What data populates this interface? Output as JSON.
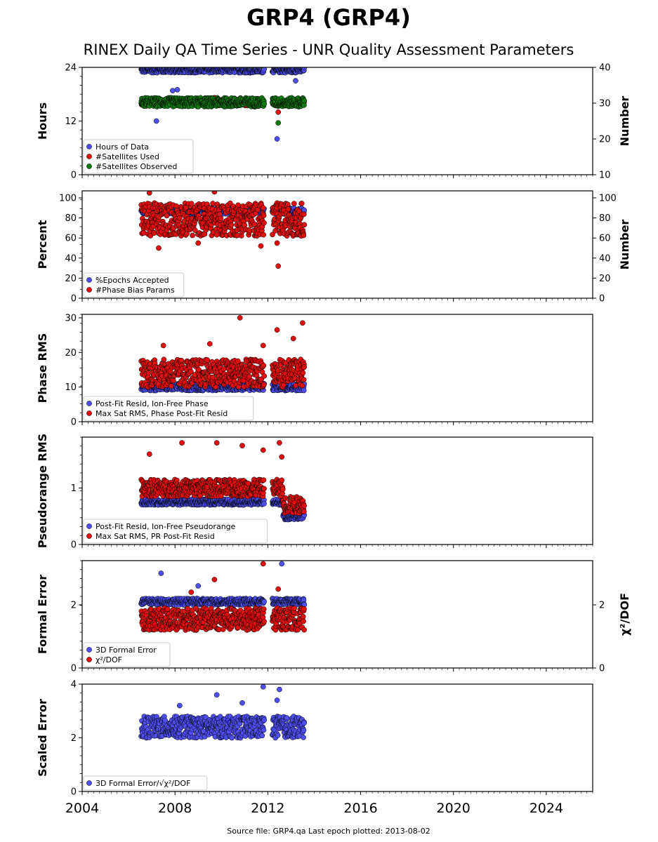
{
  "title": "GRP4 (GRP4)",
  "subtitle": "RINEX Daily QA Time Series - UNR Quality Assessment Parameters",
  "footer": "Source file: GRP4.qa Last epoch plotted: 2013-08-02",
  "colors": {
    "blue": "#4f4ff0",
    "red": "#e01010",
    "green": "#127a12",
    "edge": "#000000"
  },
  "x_axis": {
    "min": 2004,
    "max": 2026,
    "ticks": [
      "2004",
      "2008",
      "2012",
      "2016",
      "2020",
      "2024"
    ]
  },
  "data_span": {
    "gaps": [
      [
        2011.85,
        2012.2
      ]
    ]
  },
  "chart_data": [
    {
      "type": "scatter",
      "ylabel": "Hours",
      "ylabel_right": "Number",
      "ylim": [
        0,
        24
      ],
      "ylim_right": [
        10,
        40
      ],
      "yticks": [
        "0",
        "12",
        "24"
      ],
      "yticks_right": [
        "10",
        "20",
        "30",
        "40"
      ],
      "grid": false,
      "legend_position": "lower-left",
      "series": [
        {
          "name": "Hours of Data",
          "axis": "left",
          "color": "blue",
          "band": [
            22.8,
            24
          ],
          "outliers": [
            [
              2007.2,
              12
            ],
            [
              2007.9,
              18.8
            ],
            [
              2008.1,
              19
            ],
            [
              2012.4,
              8
            ],
            [
              2013.2,
              21
            ]
          ]
        },
        {
          "name": "#Satellites Used",
          "axis": "right",
          "color": "red",
          "band": [
            29.3,
            31
          ],
          "outliers": [
            [
              2009.7,
              31.5
            ],
            [
              2012.45,
              27.5
            ]
          ]
        },
        {
          "name": "#Satellites Observed",
          "axis": "right",
          "color": "green",
          "band": [
            29,
            31.5
          ],
          "outliers": [
            [
              2012.45,
              24.5
            ]
          ]
        }
      ]
    },
    {
      "type": "scatter",
      "ylabel": "Percent",
      "ylabel_right": "Number",
      "ylim": [
        0,
        107
      ],
      "ylim_right": [
        0,
        107
      ],
      "yticks": [
        "0",
        "20",
        "40",
        "60",
        "80",
        "100"
      ],
      "yticks_right": [
        "0",
        "20",
        "40",
        "60",
        "80",
        "100"
      ],
      "grid": false,
      "legend_position": "lower-left",
      "series": [
        {
          "name": "%Epochs Accepted",
          "axis": "left",
          "color": "blue",
          "band": [
            84,
            90
          ],
          "outliers": []
        },
        {
          "name": "#Phase Bias Params",
          "axis": "right",
          "color": "red",
          "band": [
            62,
            95
          ],
          "outliers": [
            [
              2006.9,
              105
            ],
            [
              2007.3,
              50
            ],
            [
              2009.0,
              55
            ],
            [
              2009.7,
              106
            ],
            [
              2011.7,
              52
            ],
            [
              2012.45,
              32
            ],
            [
              2012.4,
              55
            ]
          ]
        }
      ]
    },
    {
      "type": "scatter",
      "ylabel": "Phase RMS",
      "ylim": [
        0,
        31
      ],
      "yticks": [
        "0",
        "10",
        "20",
        "30"
      ],
      "grid": false,
      "legend_position": "lower-left",
      "series": [
        {
          "name": "Post-Fit Resid, Ion-Free Phase",
          "axis": "left",
          "color": "blue",
          "band": [
            9,
            11
          ],
          "outliers": []
        },
        {
          "name": "Max Sat RMS, Phase Post-Fit Resid",
          "axis": "left",
          "color": "red",
          "band": [
            10,
            18
          ],
          "outliers": [
            [
              2010.8,
              30
            ],
            [
              2012.4,
              26.5
            ],
            [
              2013.5,
              28.5
            ],
            [
              2007.5,
              22
            ],
            [
              2009.5,
              22.5
            ],
            [
              2011.8,
              22
            ],
            [
              2013.1,
              24
            ]
          ]
        }
      ]
    },
    {
      "type": "scatter",
      "ylabel": "Pseudorange RMS",
      "ylim": [
        0,
        1.9
      ],
      "yticks": [
        "0",
        "1"
      ],
      "grid": false,
      "legend_position": "lower-left",
      "series": [
        {
          "name": "Post-Fit Resid, Ion-Free Pseudorange",
          "axis": "left",
          "color": "blue",
          "band": [
            0.7,
            0.8
          ],
          "late_band": [
            0.44,
            0.54
          ],
          "outliers": []
        },
        {
          "name": "Max Sat RMS, PR Post-Fit Resid",
          "axis": "left",
          "color": "red",
          "band": [
            0.85,
            1.15
          ],
          "late_band": [
            0.55,
            0.85
          ],
          "outliers": [
            [
              2008.3,
              1.8
            ],
            [
              2009.8,
              1.8
            ],
            [
              2011.8,
              1.67
            ],
            [
              2010.9,
              1.75
            ],
            [
              2012.5,
              1.8
            ],
            [
              2006.9,
              1.6
            ],
            [
              2012.6,
              1.55
            ]
          ]
        }
      ]
    },
    {
      "type": "scatter",
      "ylabel": "Formal Error",
      "ylabel_right": "χ²/DOF",
      "ylim": [
        0,
        3.4
      ],
      "ylim_right": [
        0,
        3.4
      ],
      "yticks": [
        "0",
        "2"
      ],
      "yticks_right": [
        "0",
        "2"
      ],
      "grid": false,
      "legend_position": "lower-left",
      "series": [
        {
          "name": "3D Formal Error",
          "axis": "left",
          "color": "blue",
          "band": [
            2.0,
            2.2
          ],
          "outliers": [
            [
              2007.4,
              3.0
            ],
            [
              2012.6,
              3.3
            ],
            [
              2009.0,
              2.6
            ]
          ]
        },
        {
          "name": "χ²/DOF",
          "axis": "right",
          "color": "red",
          "band": [
            1.2,
            1.9
          ],
          "outliers": [
            [
              2011.8,
              3.3
            ],
            [
              2009.7,
              2.8
            ],
            [
              2008.7,
              2.4
            ],
            [
              2012.45,
              2.5
            ]
          ]
        }
      ]
    },
    {
      "type": "scatter",
      "ylabel": "Scaled Error",
      "ylim": [
        0,
        4
      ],
      "yticks": [
        "0",
        "2",
        "4"
      ],
      "grid": false,
      "legend_position": "lower-left",
      "series": [
        {
          "name": "3D Formal Error/√χ²/DOF",
          "axis": "left",
          "color": "blue",
          "band": [
            2.0,
            2.8
          ],
          "outliers": [
            [
              2011.8,
              3.9
            ],
            [
              2012.5,
              3.8
            ],
            [
              2009.8,
              3.6
            ],
            [
              2008.2,
              3.2
            ],
            [
              2010.9,
              3.3
            ],
            [
              2012.4,
              3.4
            ]
          ]
        }
      ]
    }
  ]
}
